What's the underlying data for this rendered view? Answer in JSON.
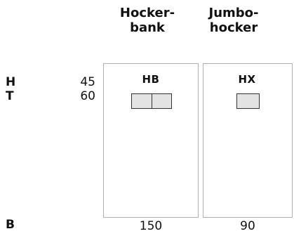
{
  "columns": [
    {
      "code": "HB",
      "title_line1": "Hocker-",
      "title_line2": "bank",
      "width": "150"
    },
    {
      "code": "HX",
      "title_line1": "Jumbo-",
      "title_line2": "hocker",
      "width": "90"
    }
  ],
  "dimensions": {
    "height_label": "H",
    "depth_label": "T",
    "width_label": "B",
    "height_value": "45",
    "depth_value": "60"
  },
  "colors": {
    "seat_fill": "#e3e3e3",
    "panel_border": "#b0b0b0",
    "seat_border": "#333333"
  }
}
